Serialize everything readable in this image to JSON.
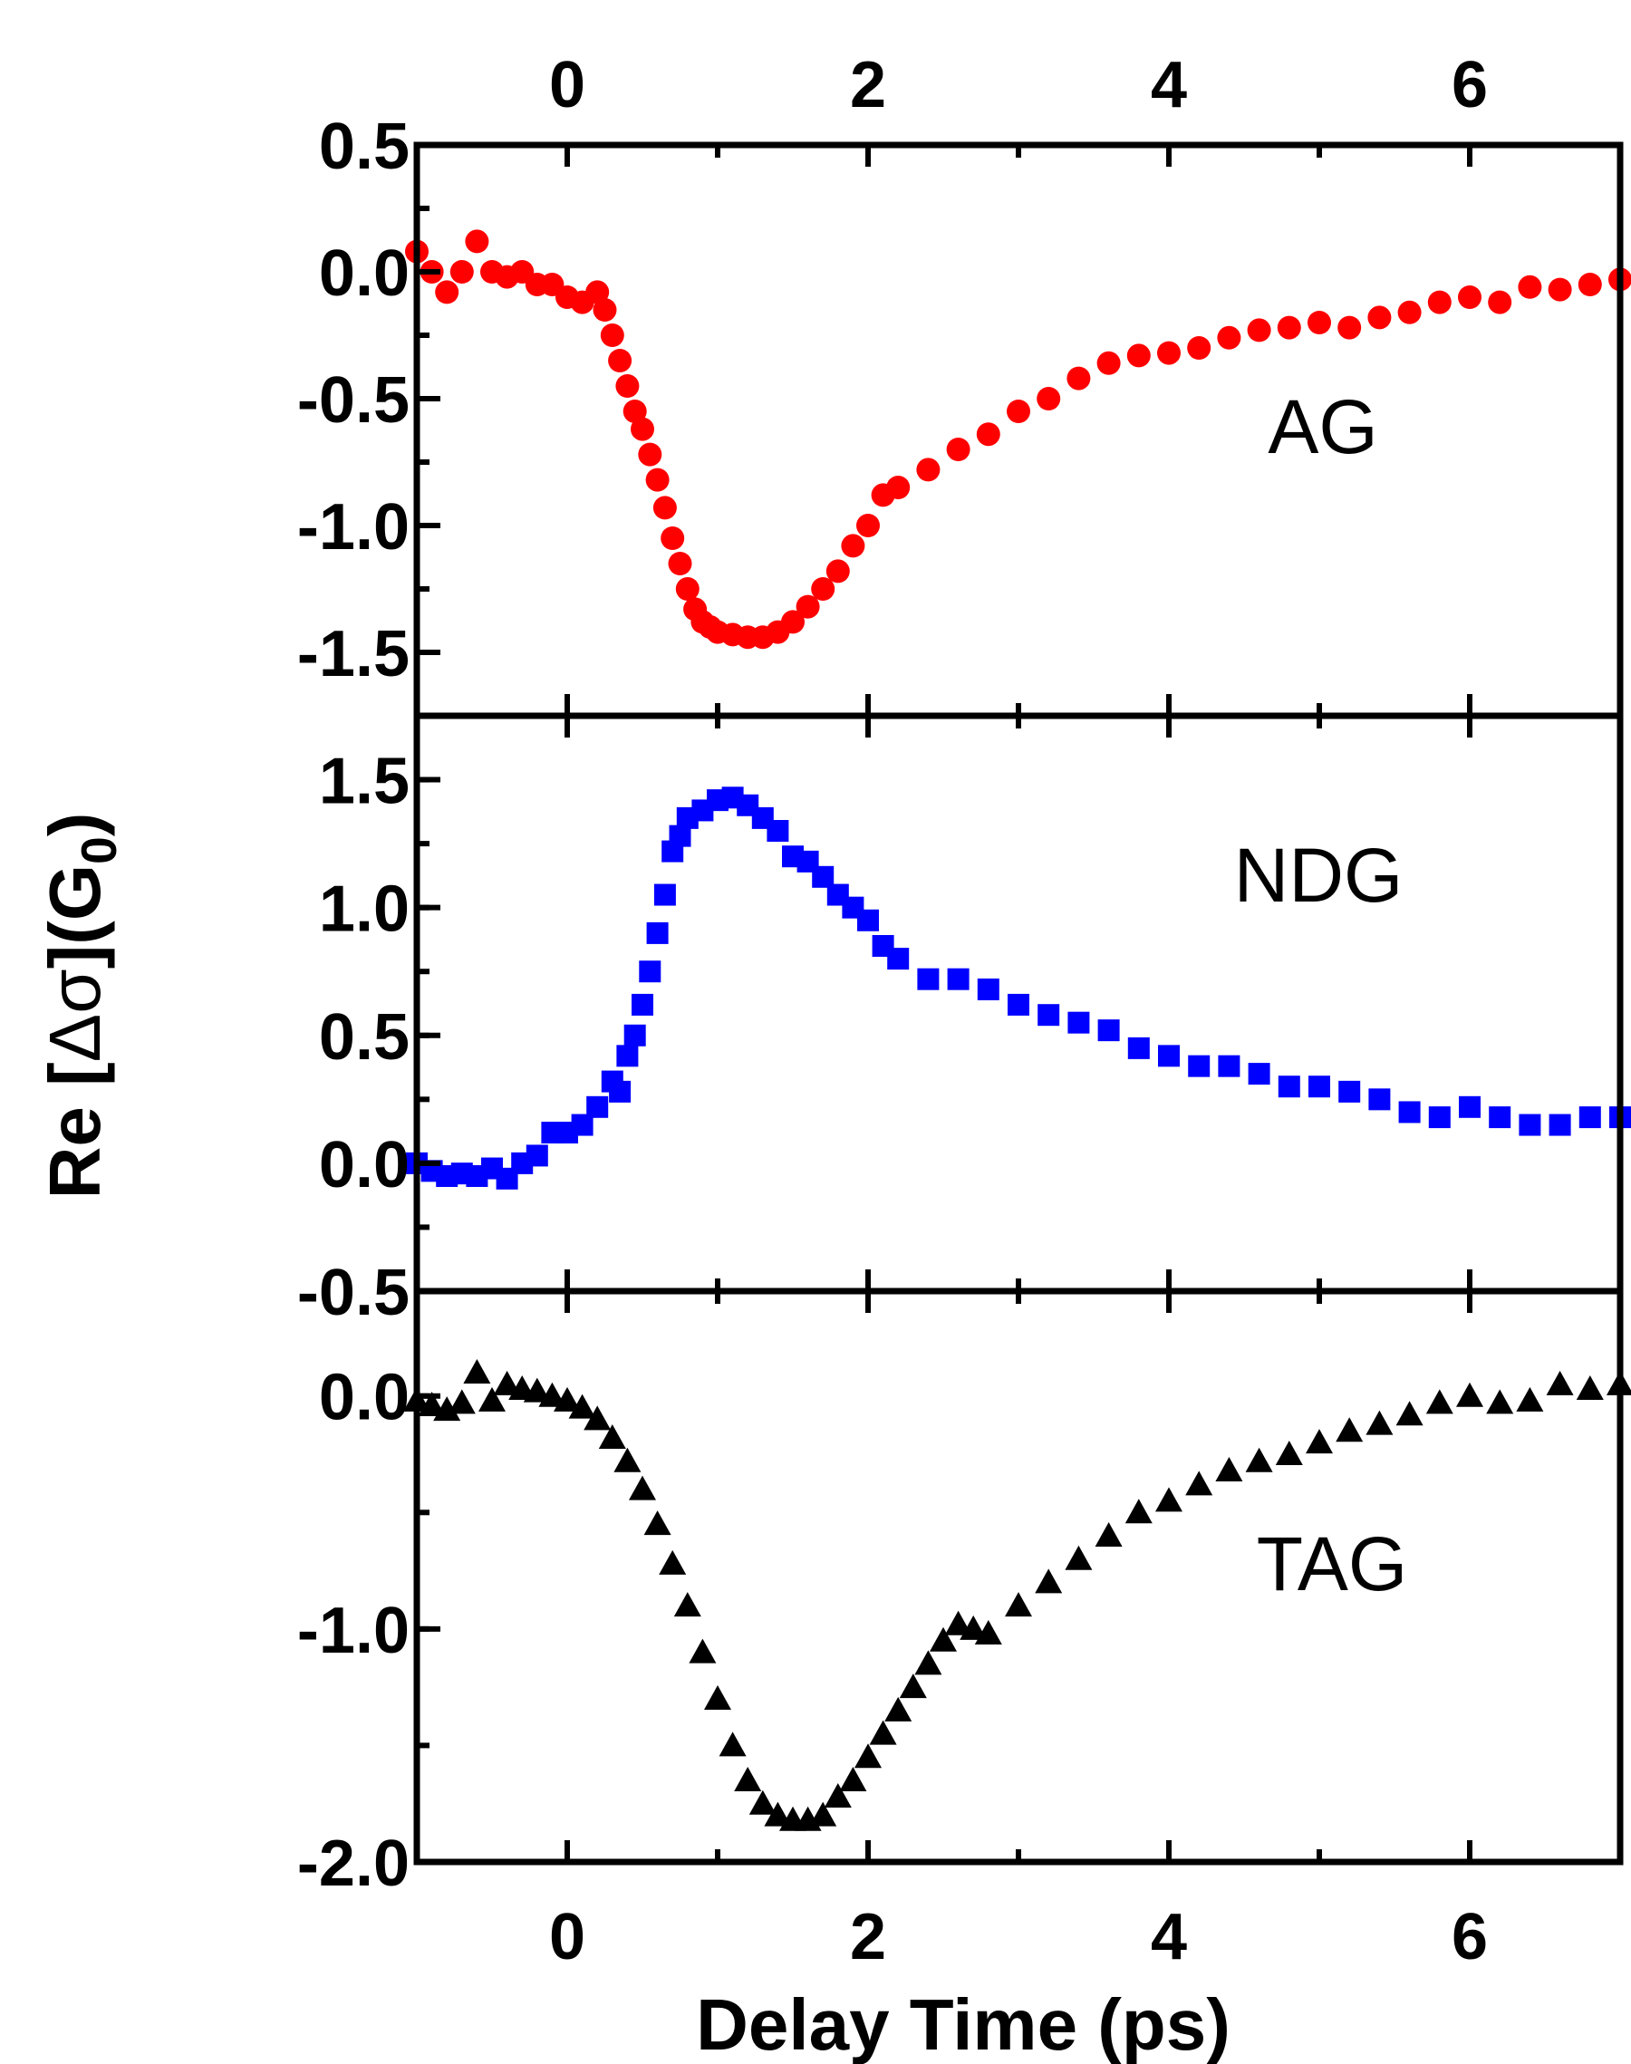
{
  "chart_data": {
    "type": "scatter",
    "xlabel": "Delay Time (ps)",
    "ylabel_parts": {
      "prefix": "Re [",
      "delta_sigma": "Δσ",
      "middle": "](G",
      "subscript": "0",
      "suffix": ")"
    },
    "xlim": [
      -1.0,
      7.0
    ],
    "x_ticks": [
      0,
      2,
      4,
      6
    ],
    "x_tick_labels": [
      "0",
      "2",
      "4",
      "6"
    ],
    "panels": [
      {
        "label": "AG",
        "color": "#ff0000",
        "marker": "circle",
        "ylim": [
          -1.75,
          0.5
        ],
        "y_ticks": [
          0.5,
          0.0,
          -0.5,
          -1.0,
          -1.5
        ],
        "y_tick_labels": [
          "0.5",
          "0.0",
          "-0.5",
          "-1.0",
          "-1.5"
        ],
        "x": [
          -1.0,
          -0.9,
          -0.8,
          -0.7,
          -0.6,
          -0.5,
          -0.4,
          -0.3,
          -0.2,
          -0.1,
          0.0,
          0.1,
          0.2,
          0.25,
          0.3,
          0.35,
          0.4,
          0.45,
          0.5,
          0.55,
          0.6,
          0.65,
          0.7,
          0.75,
          0.8,
          0.85,
          0.9,
          0.95,
          1.0,
          1.1,
          1.2,
          1.3,
          1.4,
          1.5,
          1.6,
          1.7,
          1.8,
          1.9,
          2.0,
          2.1,
          2.2,
          2.4,
          2.6,
          2.8,
          3.0,
          3.2,
          3.4,
          3.6,
          3.8,
          4.0,
          4.2,
          4.4,
          4.6,
          4.8,
          5.0,
          5.2,
          5.4,
          5.6,
          5.8,
          6.0,
          6.2,
          6.4,
          6.6,
          6.8,
          7.0
        ],
        "values": [
          0.08,
          0.0,
          -0.08,
          0.0,
          0.12,
          0.0,
          -0.02,
          0.0,
          -0.05,
          -0.05,
          -0.1,
          -0.12,
          -0.08,
          -0.15,
          -0.25,
          -0.35,
          -0.45,
          -0.55,
          -0.62,
          -0.72,
          -0.82,
          -0.93,
          -1.05,
          -1.15,
          -1.25,
          -1.33,
          -1.38,
          -1.4,
          -1.42,
          -1.43,
          -1.44,
          -1.44,
          -1.42,
          -1.38,
          -1.32,
          -1.25,
          -1.18,
          -1.08,
          -1.0,
          -0.88,
          -0.85,
          -0.78,
          -0.7,
          -0.64,
          -0.55,
          -0.5,
          -0.42,
          -0.36,
          -0.33,
          -0.32,
          -0.3,
          -0.26,
          -0.23,
          -0.22,
          -0.2,
          -0.22,
          -0.18,
          -0.16,
          -0.12,
          -0.1,
          -0.12,
          -0.06,
          -0.07,
          -0.05,
          -0.03
        ]
      },
      {
        "label": "NDG",
        "color": "#0000ff",
        "marker": "square",
        "ylim": [
          -0.5,
          1.75
        ],
        "y_ticks": [
          1.5,
          1.0,
          0.5,
          0.0,
          -0.5
        ],
        "y_tick_labels": [
          "1.5",
          "1.0",
          "0.5",
          "0.0",
          "-0.5"
        ],
        "x": [
          -1.0,
          -0.9,
          -0.8,
          -0.7,
          -0.6,
          -0.5,
          -0.4,
          -0.3,
          -0.2,
          -0.1,
          0.0,
          0.1,
          0.2,
          0.3,
          0.35,
          0.4,
          0.45,
          0.5,
          0.55,
          0.6,
          0.65,
          0.7,
          0.75,
          0.8,
          0.9,
          1.0,
          1.1,
          1.2,
          1.3,
          1.4,
          1.5,
          1.6,
          1.7,
          1.8,
          1.9,
          2.0,
          2.1,
          2.2,
          2.4,
          2.6,
          2.8,
          3.0,
          3.2,
          3.4,
          3.6,
          3.8,
          4.0,
          4.2,
          4.4,
          4.6,
          4.8,
          5.0,
          5.2,
          5.4,
          5.6,
          5.8,
          6.0,
          6.2,
          6.4,
          6.6,
          6.8,
          7.0
        ],
        "values": [
          0.0,
          -0.03,
          -0.05,
          -0.04,
          -0.05,
          -0.02,
          -0.06,
          0.0,
          0.03,
          0.12,
          0.12,
          0.15,
          0.22,
          0.32,
          0.28,
          0.42,
          0.5,
          0.62,
          0.75,
          0.9,
          1.05,
          1.22,
          1.28,
          1.35,
          1.38,
          1.42,
          1.43,
          1.4,
          1.35,
          1.3,
          1.2,
          1.18,
          1.12,
          1.05,
          1.0,
          0.95,
          0.85,
          0.8,
          0.72,
          0.72,
          0.68,
          0.62,
          0.58,
          0.55,
          0.52,
          0.45,
          0.42,
          0.38,
          0.38,
          0.35,
          0.3,
          0.3,
          0.28,
          0.25,
          0.2,
          0.18,
          0.22,
          0.18,
          0.15,
          0.15,
          0.18,
          0.18
        ]
      },
      {
        "label": "TAG",
        "color": "#000000",
        "marker": "triangle",
        "ylim": [
          -2.0,
          0.45
        ],
        "y_ticks": [
          0.0,
          -1.0,
          -2.0
        ],
        "y_tick_labels": [
          "0.0",
          "-1.0",
          "-2.0"
        ],
        "x": [
          -1.0,
          -0.9,
          -0.8,
          -0.7,
          -0.6,
          -0.5,
          -0.4,
          -0.3,
          -0.2,
          -0.1,
          0.0,
          0.1,
          0.2,
          0.3,
          0.4,
          0.5,
          0.6,
          0.7,
          0.8,
          0.9,
          1.0,
          1.1,
          1.2,
          1.3,
          1.4,
          1.5,
          1.6,
          1.7,
          1.8,
          1.9,
          2.0,
          2.1,
          2.2,
          2.3,
          2.4,
          2.5,
          2.6,
          2.7,
          2.8,
          3.0,
          3.2,
          3.4,
          3.6,
          3.8,
          4.0,
          4.2,
          4.4,
          4.6,
          4.8,
          5.0,
          5.2,
          5.4,
          5.6,
          5.8,
          6.0,
          6.2,
          6.4,
          6.6,
          6.8,
          7.0
        ],
        "values": [
          -0.02,
          -0.04,
          -0.06,
          -0.03,
          0.1,
          -0.02,
          0.05,
          0.03,
          0.02,
          0.0,
          -0.02,
          -0.05,
          -0.1,
          -0.18,
          -0.28,
          -0.4,
          -0.55,
          -0.72,
          -0.9,
          -1.1,
          -1.3,
          -1.5,
          -1.65,
          -1.75,
          -1.8,
          -1.82,
          -1.82,
          -1.8,
          -1.72,
          -1.65,
          -1.55,
          -1.45,
          -1.35,
          -1.25,
          -1.15,
          -1.05,
          -0.98,
          -1.0,
          -1.02,
          -0.9,
          -0.8,
          -0.7,
          -0.6,
          -0.5,
          -0.45,
          -0.38,
          -0.32,
          -0.28,
          -0.25,
          -0.2,
          -0.15,
          -0.12,
          -0.08,
          -0.03,
          0.0,
          -0.03,
          -0.02,
          0.05,
          0.03,
          0.05
        ]
      }
    ]
  }
}
